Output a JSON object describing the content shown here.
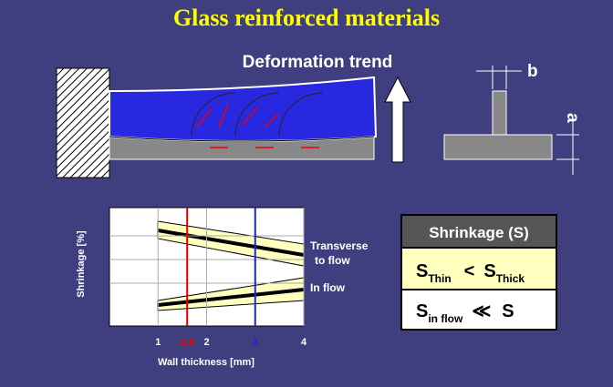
{
  "title": "Glass reinforced materials",
  "deformation": {
    "label": "Deformation trend",
    "dimension_a": "a",
    "dimension_b": "b"
  },
  "chart": {
    "y_label": "Shrinkage [%]",
    "x_label": "Wall thickness [mm]",
    "xlim": [
      0,
      4
    ],
    "xticks": [
      1,
      1.6,
      2,
      3,
      4
    ],
    "curves": [
      {
        "label": [
          "Transverse",
          "to flow"
        ]
      },
      {
        "label": [
          "In flow"
        ]
      }
    ]
  },
  "table": {
    "header": "Shrinkage (S)",
    "rows": [
      [
        "S",
        "Thin",
        "<",
        "S",
        "Thick"
      ],
      [
        "S",
        "in flow",
        "≪",
        "S"
      ]
    ]
  }
}
